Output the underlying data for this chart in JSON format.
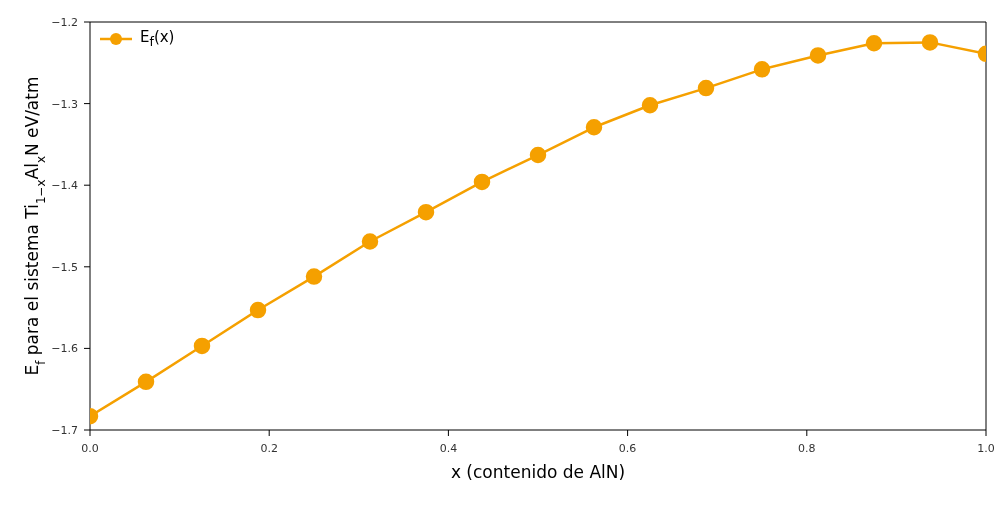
{
  "chart_data": {
    "type": "line",
    "xlabel": "x (contenido de AlN)",
    "ylabel": "E$_{f}$ para el sistema Ti$_{1−x}$Al$_{x}$N eV/atm",
    "x": [
      0,
      0.0625,
      0.125,
      0.1875,
      0.25,
      0.3125,
      0.375,
      0.4375,
      0.5,
      0.5625,
      0.625,
      0.6875,
      0.75,
      0.8125,
      0.875,
      0.9375,
      1.0
    ],
    "series": [
      {
        "name": "E$_{f}$(x)",
        "color": "#f5a000",
        "values": [
          -1.683,
          -1.641,
          -1.597,
          -1.553,
          -1.512,
          -1.469,
          -1.433,
          -1.396,
          -1.363,
          -1.329,
          -1.302,
          -1.281,
          -1.258,
          -1.241,
          -1.226,
          -1.225,
          -1.239
        ]
      }
    ],
    "xlim": [
      0,
      1
    ],
    "ylim": [
      -1.7,
      -1.2
    ],
    "xticks": [
      {
        "value": 0,
        "label": "0.0"
      },
      {
        "value": 0.2,
        "label": "0.2"
      },
      {
        "value": 0.4,
        "label": "0.4"
      },
      {
        "value": 0.6,
        "label": "0.6"
      },
      {
        "value": 0.8,
        "label": "0.8"
      },
      {
        "value": 1,
        "label": "1.0"
      }
    ],
    "yticks": [
      {
        "value": -1.7,
        "label": "−1.7"
      },
      {
        "value": -1.6,
        "label": "−1.6"
      },
      {
        "value": -1.5,
        "label": "−1.5"
      },
      {
        "value": -1.4,
        "label": "−1.4"
      },
      {
        "value": -1.3,
        "label": "−1.3"
      },
      {
        "value": -1.2,
        "label": "−1.2"
      }
    ],
    "grid": false,
    "legend": "top left",
    "marker": "circle",
    "line_style": "solid"
  }
}
